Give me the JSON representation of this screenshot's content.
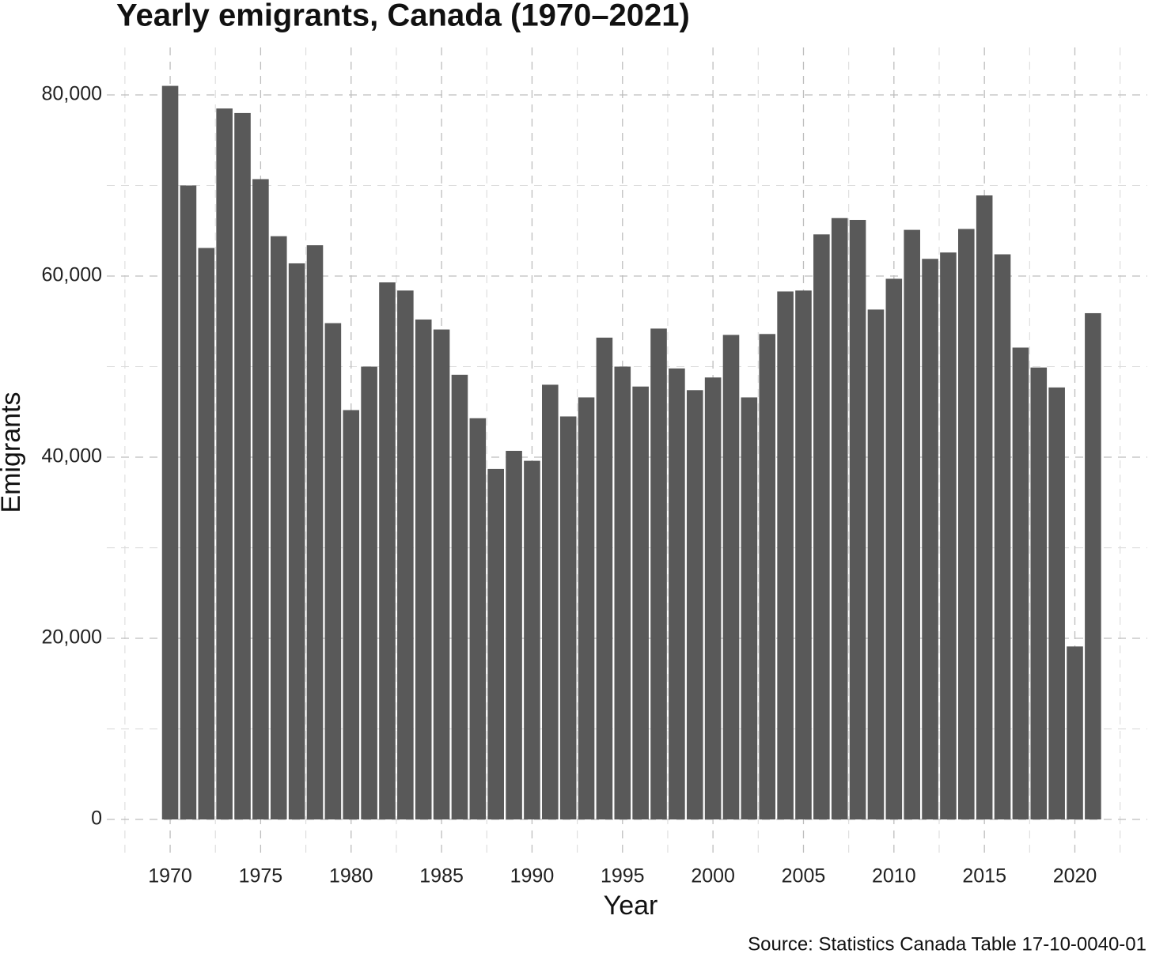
{
  "chart_data": {
    "type": "bar",
    "title": "Yearly emigrants, Canada (1970–2021)",
    "x_label": "Year",
    "y_label": "Emigrants",
    "source": "Source: Statistics Canada Table 17-10-0040-01",
    "color": "#595959",
    "grid": true,
    "x": [
      1970,
      1971,
      1972,
      1973,
      1974,
      1975,
      1976,
      1977,
      1978,
      1979,
      1980,
      1981,
      1982,
      1983,
      1984,
      1985,
      1986,
      1987,
      1988,
      1989,
      1990,
      1991,
      1992,
      1993,
      1994,
      1995,
      1996,
      1997,
      1998,
      1999,
      2000,
      2001,
      2002,
      2003,
      2004,
      2005,
      2006,
      2007,
      2008,
      2009,
      2010,
      2011,
      2012,
      2013,
      2014,
      2015,
      2016,
      2017,
      2018,
      2019,
      2020,
      2021
    ],
    "values": [
      81000,
      70000,
      63100,
      78500,
      78000,
      70700,
      64400,
      61400,
      63400,
      54800,
      45200,
      50000,
      59300,
      58400,
      55200,
      54100,
      49100,
      44300,
      38700,
      40700,
      39600,
      48000,
      44500,
      46600,
      53200,
      50000,
      47800,
      54200,
      49800,
      47400,
      48800,
      53500,
      46600,
      53600,
      58300,
      58400,
      64600,
      66400,
      66200,
      56300,
      59700,
      65100,
      61900,
      62600,
      65200,
      68900,
      62400,
      52100,
      49900,
      47700,
      19100,
      55900
    ],
    "xlim": [
      1966.5,
      2024
    ],
    "xticks": [
      1970,
      1975,
      1980,
      1985,
      1990,
      1995,
      2000,
      2005,
      2010,
      2015,
      2020
    ],
    "xminor": [
      1967.5,
      1972.5,
      1977.5,
      1982.5,
      1987.5,
      1992.5,
      1997.5,
      2002.5,
      2007.5,
      2012.5,
      2017.5,
      2022.5
    ],
    "ylim": [
      -3840,
      85240
    ],
    "yticks": [
      0,
      {
        "value": 20000,
        "label": "20,000"
      },
      {
        "value": 40000,
        "label": "40,000"
      },
      {
        "value": 60000,
        "label": "60,000"
      },
      {
        "value": 80000,
        "label": "80,000"
      }
    ],
    "yminor": [
      10000,
      30000,
      50000,
      70000
    ]
  }
}
